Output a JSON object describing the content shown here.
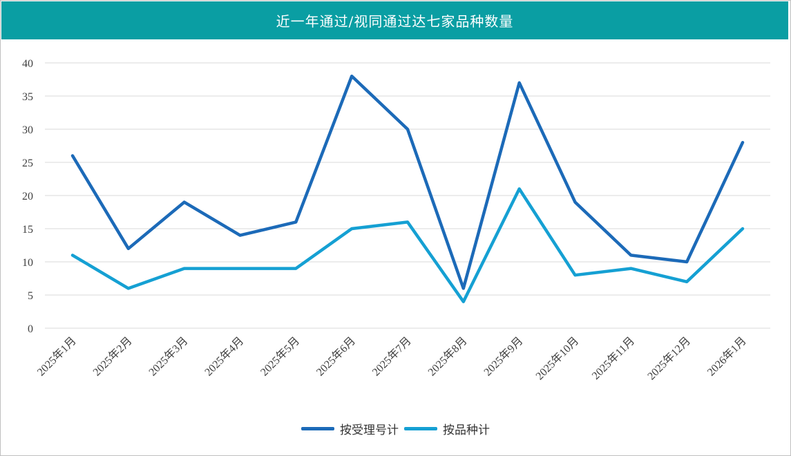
{
  "colors": {
    "header_bg": "#0a9ea3",
    "series_1": "#1c6ab8",
    "series_2": "#15a0d3",
    "grid": "#d9d9d9"
  },
  "chart_data": {
    "type": "line",
    "title": "近一年通过/视同通过达七家品种数量",
    "xlabel": "",
    "ylabel": "",
    "categories": [
      "2025年1月",
      "2025年2月",
      "2025年3月",
      "2025年4月",
      "2025年5月",
      "2025年6月",
      "2025年7月",
      "2025年8月",
      "2025年9月",
      "2025年10月",
      "2025年11月",
      "2025年12月",
      "2026年1月"
    ],
    "ylim": [
      0,
      40
    ],
    "yticks": [
      0,
      5,
      10,
      15,
      20,
      25,
      30,
      35,
      40
    ],
    "grid": "horizontal",
    "legend_position": "bottom",
    "series": [
      {
        "name": "按受理号计",
        "values": [
          26,
          12,
          19,
          14,
          16,
          38,
          30,
          6,
          37,
          19,
          11,
          10,
          28
        ]
      },
      {
        "name": "按品种计",
        "values": [
          11,
          6,
          9,
          9,
          9,
          15,
          16,
          4,
          21,
          8,
          9,
          7,
          15
        ]
      }
    ]
  }
}
